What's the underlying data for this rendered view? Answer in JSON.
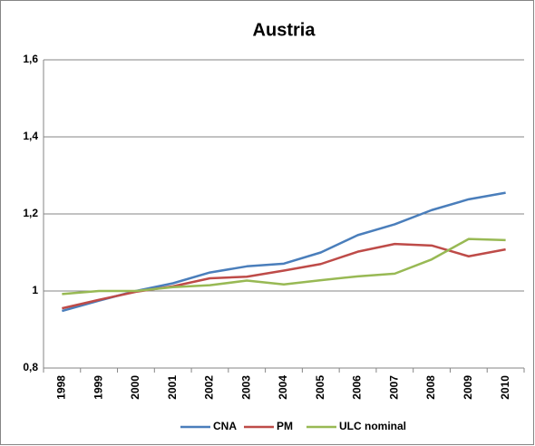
{
  "chart_data": {
    "type": "line",
    "title": "Austria",
    "categories": [
      "1998",
      "1999",
      "2000",
      "2001",
      "2002",
      "2003",
      "2004",
      "2005",
      "2006",
      "2007",
      "2008",
      "2009",
      "2010"
    ],
    "series": [
      {
        "name": "CNA",
        "color": "#4a7ebb",
        "values": [
          0.948,
          0.975,
          1.0,
          1.02,
          1.048,
          1.064,
          1.071,
          1.1,
          1.145,
          1.173,
          1.21,
          1.238,
          1.255
        ]
      },
      {
        "name": "PM",
        "color": "#be4b48",
        "values": [
          0.955,
          0.977,
          0.998,
          1.012,
          1.033,
          1.037,
          1.053,
          1.07,
          1.102,
          1.122,
          1.118,
          1.09,
          1.108
        ]
      },
      {
        "name": "ULC nominal",
        "color": "#98b954",
        "values": [
          0.992,
          1.0,
          1.0,
          1.01,
          1.015,
          1.027,
          1.017,
          1.028,
          1.038,
          1.045,
          1.082,
          1.135,
          1.132
        ]
      }
    ],
    "ylim": [
      0.8,
      1.6
    ],
    "yticks": [
      {
        "value": 0.8,
        "label": "0,8"
      },
      1,
      {
        "value": 1.2,
        "label": "1,2"
      },
      {
        "value": 1.4,
        "label": "1,4"
      },
      {
        "value": 1.6,
        "label": "1,6"
      }
    ],
    "grid": true,
    "legend": "bottom"
  }
}
